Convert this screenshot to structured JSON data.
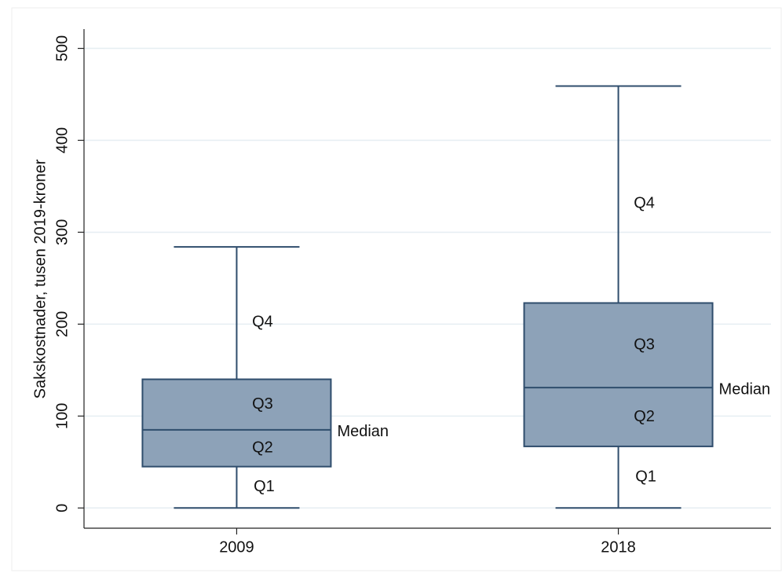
{
  "chart_data": {
    "type": "box",
    "ylabel": "Sakskostnader, tusen 2019-kroner",
    "categories": [
      "2009",
      "2018"
    ],
    "boxes": [
      {
        "min": 0,
        "q1": 45,
        "median": 85,
        "q3": 140,
        "max": 284
      },
      {
        "min": 0,
        "q1": 67,
        "median": 131,
        "q3": 223,
        "max": 459
      }
    ],
    "annotations": {
      "q1": "Q1",
      "q2": "Q2",
      "q3": "Q3",
      "q4": "Q4",
      "median": "Median"
    },
    "color": "#8da2b8",
    "edge_color": "#2f4d6c",
    "ylim": [
      -22,
      521
    ],
    "yticks": [
      0,
      100,
      200,
      300,
      400,
      500
    ],
    "grid": true
  }
}
